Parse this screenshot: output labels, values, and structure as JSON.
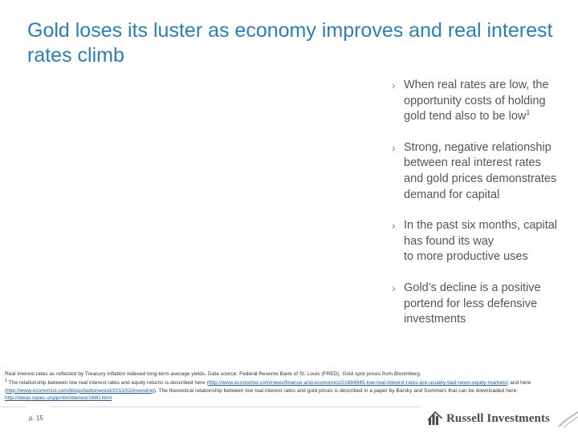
{
  "title": "Gold loses its luster as economy improves and real interest rates climb",
  "bullets": [
    {
      "text": "When real rates are low, the\nopportunity costs of holding\ngold tend also to be low",
      "sup": "1"
    },
    {
      "text": "Strong, negative relationship\nbetween real interest rates\nand gold prices demonstrates\ndemand for capital",
      "sup": ""
    },
    {
      "text": "In the past six months, capital\nhas found its way\nto more productive uses",
      "sup": ""
    },
    {
      "text": "Gold’s decline is a positive\nportend for less defensive\ninvestments",
      "sup": ""
    }
  ],
  "bullet_marker": "›",
  "footnotes": {
    "line1": "Real interest rates as reflected by Treasury inflation indexed long-term average yields. Data source: Federal Reserve Bank of St. Louis (FRED). Gold spot prices from Bloomberg.",
    "fn_marker": "1",
    "part_a": " The relationship between low real interest rates and equity returns is described here (",
    "link1": "http://www.economist.com/news/finance-and-economics/21684945-low-real-interest-rates-are-usually-bad-news-equity-markets",
    "part_b": ") and here (",
    "link2": "http://www.economist.com/blogs/buttonwood/2013/02/investing",
    "part_c": "). The theoretical relationship between low real interest rates and gold prices is described in a paper by Barsky and Summers that can be downloaded here: ",
    "link3": "http://ideas.repec.org/p/nbr/nberwo/1680.html"
  },
  "page_number": "p. 15",
  "logo": {
    "text": "Russell Investments",
    "icon": "russell-logo-icon",
    "color": "#4a4a4a"
  },
  "colors": {
    "title": "#2a7fb8",
    "body_text": "#555555",
    "link": "#1a5aa8"
  }
}
